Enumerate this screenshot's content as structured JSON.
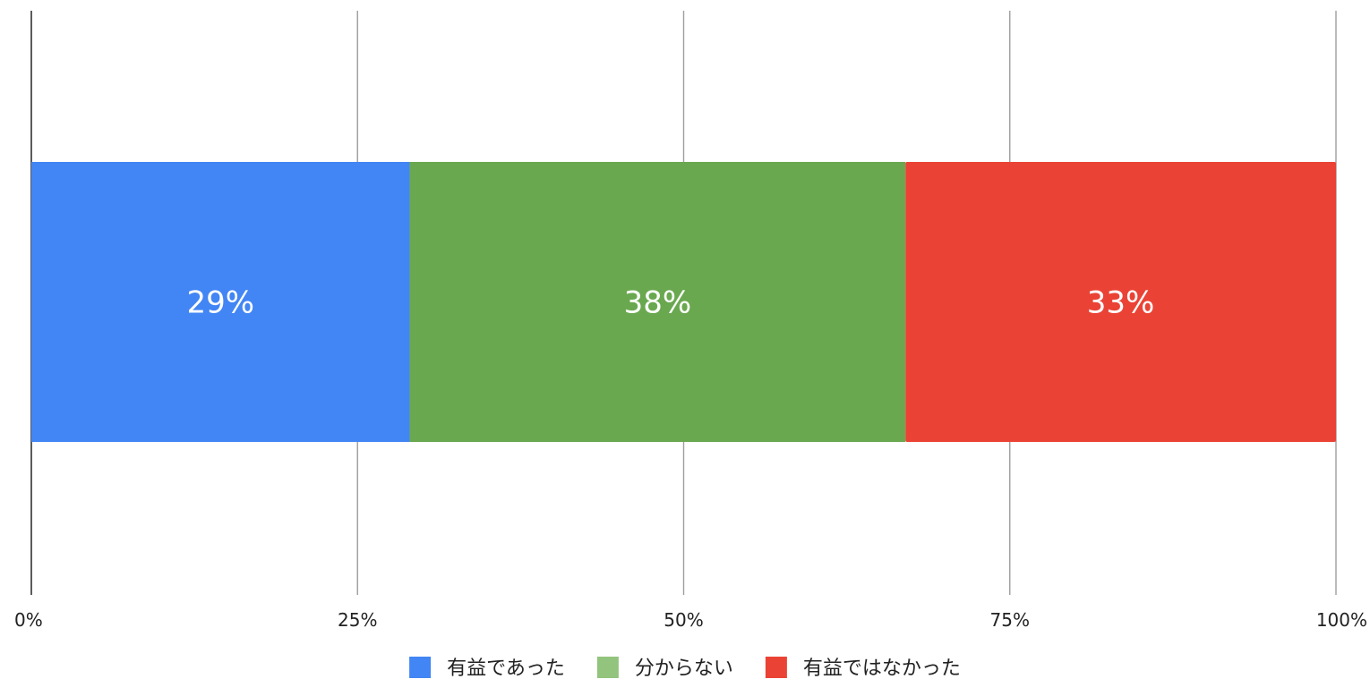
{
  "chart_data": {
    "type": "bar",
    "orientation": "horizontal",
    "stacked": "percent",
    "title": "",
    "xlabel": "",
    "ylabel": "",
    "xlim": [
      0,
      100
    ],
    "x_ticks": [
      0,
      25,
      50,
      75,
      100
    ],
    "x_tick_labels": [
      "0%",
      "25%",
      "50%",
      "75%",
      "100%"
    ],
    "grid": true,
    "legend_position": "bottom",
    "categories": [
      ""
    ],
    "series": [
      {
        "name": "有益であった",
        "values": [
          29
        ],
        "label": "29%",
        "color": "#4285F4",
        "legend_color": "#4285F4"
      },
      {
        "name": "分からない",
        "values": [
          38
        ],
        "label": "38%",
        "color": "#6AA84F",
        "legend_color": "#93C47D"
      },
      {
        "name": "有益ではなかった",
        "values": [
          33
        ],
        "label": "33%",
        "color": "#EA4335",
        "legend_color": "#EA4335"
      }
    ]
  }
}
